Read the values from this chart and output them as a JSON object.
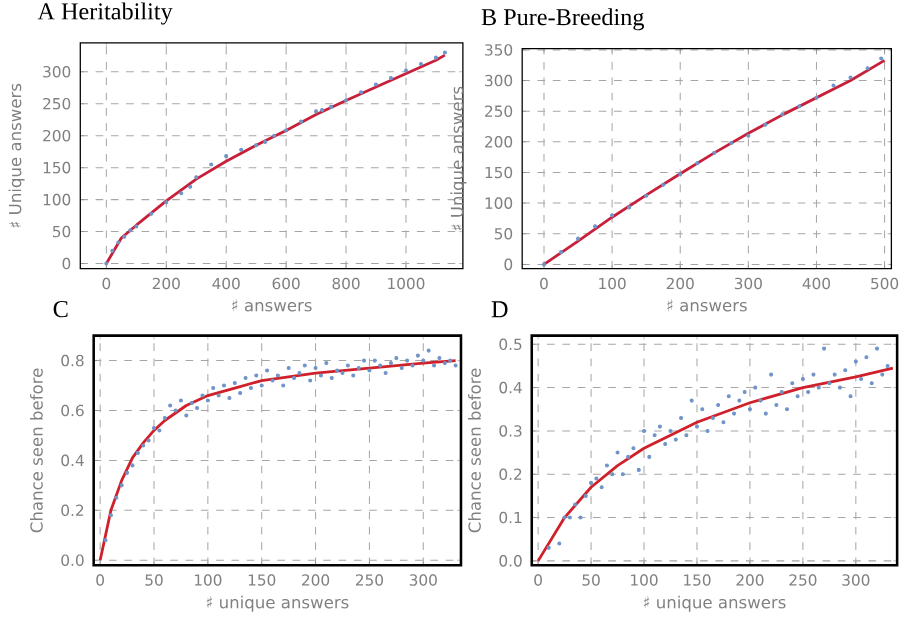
{
  "chart_data": [
    {
      "type": "scatter",
      "title": "A  Heritability",
      "xlabel": "♯ answers",
      "ylabel": "♯ Unique answers",
      "xlim": [
        -87,
        1190
      ],
      "ylim": [
        -8,
        345
      ],
      "xticks": [
        0,
        200,
        400,
        600,
        800,
        1000
      ],
      "yticks": [
        0,
        50,
        100,
        150,
        200,
        250,
        300
      ],
      "grid": true,
      "series": [
        {
          "color": "#7094c8",
          "x": [
            0,
            20,
            40,
            60,
            80,
            100,
            150,
            200,
            250,
            280,
            300,
            350,
            400,
            450,
            500,
            530,
            560,
            600,
            650,
            700,
            720,
            750,
            800,
            850,
            900,
            950,
            1000,
            1050,
            1100,
            1130
          ],
          "values": [
            0,
            20,
            33,
            42,
            52,
            58,
            78,
            96,
            110,
            120,
            135,
            155,
            168,
            178,
            185,
            190,
            200,
            208,
            222,
            238,
            240,
            245,
            255,
            268,
            280,
            290,
            302,
            312,
            322,
            330
          ]
        },
        {
          "type": "line",
          "color": "#c8203a",
          "x": [
            0,
            50,
            100,
            200,
            300,
            400,
            500,
            600,
            700,
            800,
            900,
            1000,
            1100,
            1130
          ],
          "values": [
            0,
            40,
            60,
            98,
            132,
            160,
            185,
            208,
            233,
            255,
            276,
            297,
            318,
            326
          ]
        }
      ]
    },
    {
      "type": "scatter",
      "title": "B  Pure-Breeding",
      "xlabel": "♯ answers",
      "ylabel": "♯ Unique answers",
      "xlim": [
        -32,
        510
      ],
      "ylim": [
        -7,
        352
      ],
      "xticks": [
        0,
        100,
        200,
        300,
        400,
        500
      ],
      "yticks": [
        0,
        50,
        100,
        150,
        200,
        250,
        300,
        350
      ],
      "grid": true,
      "series": [
        {
          "color": "#7094c8",
          "x": [
            0,
            25,
            50,
            75,
            100,
            125,
            150,
            175,
            200,
            225,
            250,
            275,
            300,
            325,
            350,
            375,
            400,
            425,
            450,
            475,
            495
          ],
          "values": [
            0,
            20,
            42,
            62,
            80,
            93,
            112,
            130,
            147,
            165,
            182,
            198,
            210,
            228,
            245,
            258,
            272,
            292,
            305,
            320,
            336
          ]
        },
        {
          "type": "line",
          "color": "#c8203a",
          "x": [
            0,
            50,
            100,
            150,
            200,
            250,
            300,
            350,
            400,
            450,
            500
          ],
          "values": [
            0,
            38,
            77,
            113,
            148,
            182,
            214,
            244,
            272,
            300,
            333
          ]
        }
      ]
    },
    {
      "type": "scatter",
      "title": "C",
      "xlabel": "♯ unique answers",
      "ylabel": "Chance seen before",
      "xlim": [
        -6,
        335
      ],
      "ylim": [
        -0.02,
        0.9
      ],
      "xticks": [
        0,
        50,
        100,
        150,
        200,
        250,
        300
      ],
      "yticks": [
        {
          "value": 0,
          "label": "0.0"
        },
        0.2,
        0.4,
        0.6,
        0.8
      ],
      "grid": true,
      "series": [
        {
          "color": "#7094c8",
          "x": [
            5,
            10,
            15,
            20,
            25,
            30,
            35,
            40,
            45,
            50,
            55,
            60,
            65,
            70,
            75,
            80,
            85,
            90,
            95,
            100,
            105,
            110,
            115,
            120,
            125,
            130,
            135,
            140,
            145,
            150,
            155,
            160,
            165,
            170,
            175,
            180,
            185,
            190,
            195,
            200,
            205,
            210,
            215,
            220,
            225,
            230,
            235,
            240,
            245,
            250,
            255,
            260,
            265,
            270,
            275,
            280,
            285,
            290,
            295,
            300,
            305,
            310,
            315,
            320,
            325,
            330
          ],
          "values": [
            0.08,
            0.18,
            0.25,
            0.3,
            0.35,
            0.38,
            0.43,
            0.46,
            0.48,
            0.53,
            0.52,
            0.57,
            0.62,
            0.6,
            0.64,
            0.58,
            0.63,
            0.61,
            0.66,
            0.64,
            0.69,
            0.66,
            0.7,
            0.65,
            0.71,
            0.67,
            0.73,
            0.69,
            0.74,
            0.7,
            0.76,
            0.72,
            0.74,
            0.7,
            0.77,
            0.73,
            0.75,
            0.78,
            0.72,
            0.77,
            0.74,
            0.79,
            0.73,
            0.76,
            0.75,
            0.78,
            0.74,
            0.77,
            0.8,
            0.76,
            0.8,
            0.78,
            0.75,
            0.79,
            0.81,
            0.77,
            0.8,
            0.78,
            0.82,
            0.8,
            0.84,
            0.78,
            0.81,
            0.79,
            0.8,
            0.78
          ]
        },
        {
          "type": "line",
          "color": "#d0202a",
          "x": [
            0,
            10,
            20,
            30,
            40,
            50,
            60,
            80,
            100,
            125,
            150,
            200,
            250,
            300,
            330
          ],
          "values": [
            0,
            0.2,
            0.32,
            0.41,
            0.47,
            0.52,
            0.56,
            0.62,
            0.66,
            0.69,
            0.72,
            0.75,
            0.77,
            0.79,
            0.8
          ]
        }
      ]
    },
    {
      "type": "scatter",
      "title": "D",
      "xlabel": "♯ unique answers",
      "ylabel": "Chance seen before",
      "xlim": [
        -6,
        339
      ],
      "ylim": [
        -0.01,
        0.52
      ],
      "xticks": [
        0,
        50,
        100,
        150,
        200,
        250,
        300
      ],
      "yticks": [
        {
          "value": 0,
          "label": "0.0"
        },
        0.1,
        0.2,
        0.3,
        0.4,
        0.5
      ],
      "grid": true,
      "series": [
        {
          "color": "#7094c8",
          "x": [
            10,
            20,
            25,
            30,
            35,
            40,
            45,
            50,
            55,
            60,
            65,
            70,
            75,
            80,
            85,
            90,
            95,
            100,
            105,
            110,
            115,
            120,
            125,
            130,
            135,
            140,
            145,
            150,
            155,
            160,
            165,
            170,
            175,
            180,
            185,
            190,
            195,
            200,
            205,
            210,
            215,
            220,
            225,
            230,
            235,
            240,
            245,
            250,
            255,
            260,
            265,
            270,
            275,
            280,
            285,
            290,
            295,
            300,
            305,
            310,
            315,
            320,
            325,
            330
          ],
          "values": [
            0.03,
            0.04,
            0.1,
            0.1,
            0.13,
            0.1,
            0.15,
            0.18,
            0.19,
            0.17,
            0.22,
            0.2,
            0.25,
            0.2,
            0.24,
            0.26,
            0.21,
            0.3,
            0.24,
            0.29,
            0.31,
            0.27,
            0.3,
            0.28,
            0.33,
            0.29,
            0.37,
            0.31,
            0.35,
            0.3,
            0.33,
            0.36,
            0.32,
            0.38,
            0.34,
            0.37,
            0.39,
            0.35,
            0.4,
            0.37,
            0.34,
            0.43,
            0.36,
            0.39,
            0.35,
            0.41,
            0.38,
            0.42,
            0.39,
            0.43,
            0.4,
            0.49,
            0.41,
            0.43,
            0.4,
            0.44,
            0.38,
            0.46,
            0.42,
            0.47,
            0.41,
            0.49,
            0.43,
            0.45
          ]
        },
        {
          "type": "line",
          "color": "#d0202a",
          "x": [
            0,
            25,
            50,
            75,
            100,
            150,
            200,
            250,
            300,
            335
          ],
          "values": [
            0,
            0.1,
            0.17,
            0.22,
            0.26,
            0.32,
            0.365,
            0.4,
            0.425,
            0.445
          ]
        }
      ]
    }
  ]
}
